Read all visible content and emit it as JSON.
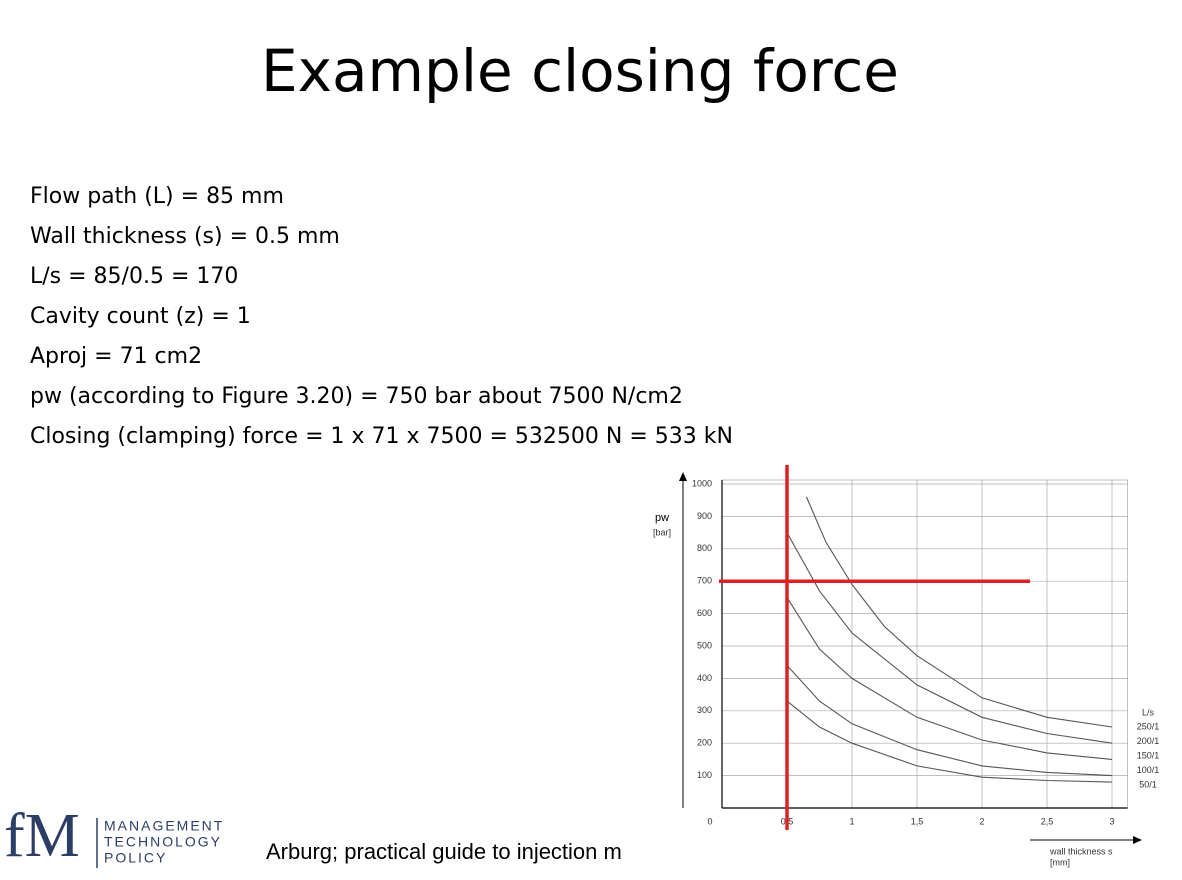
{
  "title": "Example closing force",
  "lines": [
    "Flow path (L) = 85 mm",
    "Wall thickness (s) = 0.5 mm",
    "L/s = 85/0.5 = 170",
    "Cavity count (z) = 1",
    "Aproj = 71 cm2",
    "pw (according to Figure 3.20) = 750 bar about 7500 N/cm2",
    "Closing (clamping) force = 1 x 71 x 7500 = 532500 N = 533 kN"
  ],
  "logo": {
    "mark": "fM",
    "lines": [
      "MANAGEMENT",
      "TECHNOLOGY",
      "POLICY"
    ]
  },
  "caption": "Arburg; practical guide to injection m",
  "chart": {
    "type": "line",
    "ylabel": "pw",
    "yunit": "[bar]",
    "xlabel": "wall thickness s",
    "xunit": "[mm]",
    "legend_title": "L/s",
    "xlim": [
      0,
      3.12
    ],
    "ylim": [
      0,
      1000
    ],
    "xticks": [
      0,
      {
        "value": 0.5,
        "label": "0,5"
      },
      1,
      {
        "value": 1.5,
        "label": "1,5"
      },
      2,
      {
        "value": 2.5,
        "label": "2,5"
      },
      3
    ],
    "yticks": [
      100,
      200,
      300,
      400,
      500,
      600,
      700,
      800,
      900,
      1000
    ],
    "grid": true,
    "series": [
      {
        "name": "250/1",
        "color": "#555555",
        "x": [
          0.65,
          0.8,
          1,
          1.25,
          1.5,
          2,
          2.5,
          3
        ],
        "values": [
          960,
          820,
          690,
          560,
          470,
          340,
          280,
          250
        ]
      },
      {
        "name": "200/1",
        "color": "#555555",
        "x": [
          0.5,
          0.75,
          1,
          1.5,
          2,
          2.5,
          3
        ],
        "values": [
          850,
          670,
          540,
          380,
          280,
          230,
          200
        ]
      },
      {
        "name": "150/1",
        "color": "#555555",
        "x": [
          0.5,
          0.75,
          1,
          1.5,
          2,
          2.5,
          3
        ],
        "values": [
          650,
          490,
          400,
          280,
          210,
          170,
          150
        ]
      },
      {
        "name": "100/1",
        "color": "#555555",
        "x": [
          0.5,
          0.75,
          1,
          1.5,
          2,
          2.5,
          3
        ],
        "values": [
          440,
          330,
          260,
          180,
          130,
          110,
          100
        ]
      },
      {
        "name": "50/1",
        "color": "#555555",
        "x": [
          0.5,
          0.75,
          1,
          1.5,
          2,
          2.5,
          3
        ],
        "values": [
          330,
          250,
          200,
          130,
          95,
          85,
          80
        ]
      }
    ],
    "reference": {
      "color": "#e02020",
      "x": 0.5,
      "y": 700,
      "x_end": 2.37
    }
  }
}
